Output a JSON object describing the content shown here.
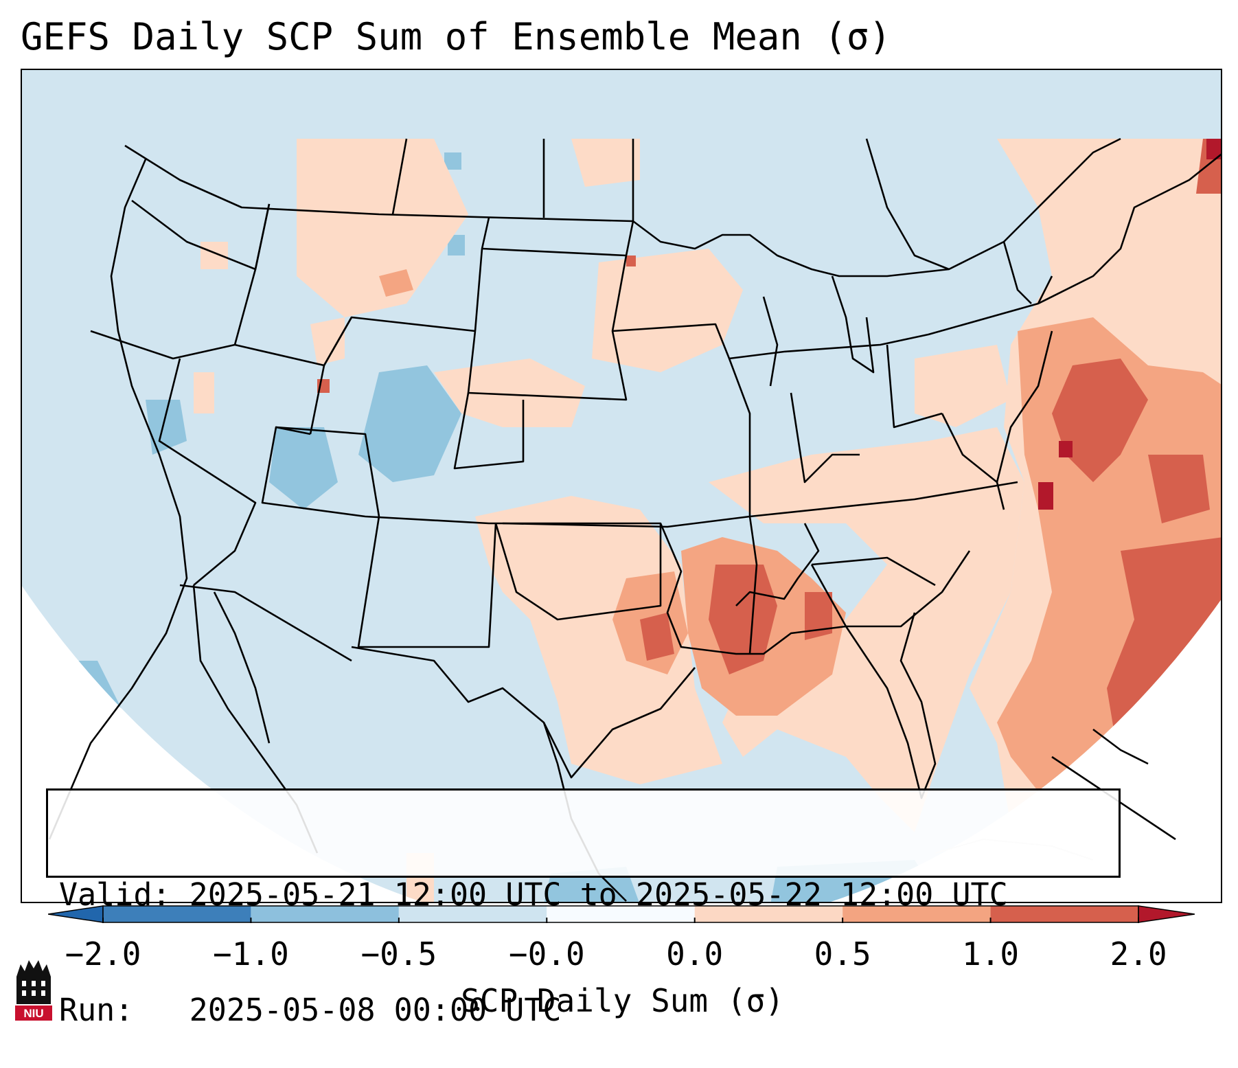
{
  "title": "GEFS Daily SCP Sum of Ensemble Mean (σ)",
  "info": {
    "valid_label": "Valid:",
    "valid_value": "2025-05-21 12:00 UTC to 2025-05-22 12:00 UTC",
    "run_label": "Run:",
    "run_value": "2025-05-08 00:00 UTC"
  },
  "colorbar": {
    "label": "SCP Daily Sum (σ)",
    "ticks": [
      "−2.0",
      "−1.0",
      "−0.5",
      "−0.0",
      "0.0",
      "0.5",
      "1.0",
      "2.0"
    ],
    "colors": [
      "#3d7fba",
      "#8dc0dd",
      "#cfe4f0",
      "#f7fbff",
      "#fcd8c4",
      "#f3a481",
      "#d6604d",
      "#b2182b"
    ],
    "extend_low_color": "#2166ac",
    "extend_high_color": "#b2182b"
  },
  "logo": {
    "text": "NIU",
    "color": "#c8102e"
  }
}
